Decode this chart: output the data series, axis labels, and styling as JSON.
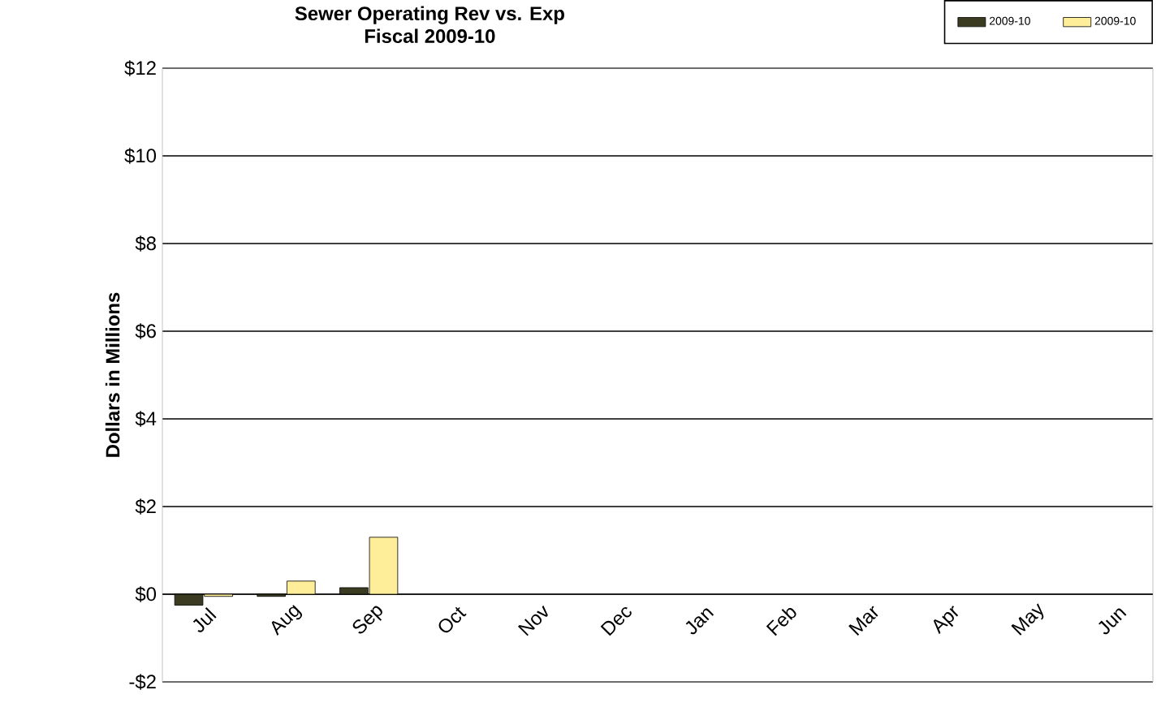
{
  "chart_data": {
    "type": "bar",
    "title": "Sewer Operating Rev vs. Exp",
    "subtitle": "Fiscal 2009-10",
    "ylabel": "Dollars in Millions",
    "categories": [
      "Jul",
      "Aug",
      "Sep",
      "Oct",
      "Nov",
      "Dec",
      "Jan",
      "Feb",
      "Mar",
      "Apr",
      "May",
      "Jun"
    ],
    "series": [
      {
        "name": "2009-10",
        "color": "#3b3b22",
        "values": [
          -0.25,
          -0.05,
          0.15,
          null,
          null,
          null,
          null,
          null,
          null,
          null,
          null,
          null
        ]
      },
      {
        "name": "2009-10",
        "color": "#ffee99",
        "values": [
          -0.05,
          0.3,
          1.3,
          null,
          null,
          null,
          null,
          null,
          null,
          null,
          null,
          null
        ]
      }
    ],
    "ylim": [
      -2,
      12
    ],
    "yticks": [
      {
        "value": -2,
        "label": "-$2"
      },
      {
        "value": 0,
        "label": "$0"
      },
      {
        "value": 2,
        "label": "$2"
      },
      {
        "value": 4,
        "label": "$4"
      },
      {
        "value": 6,
        "label": "$6"
      },
      {
        "value": 8,
        "label": "$8"
      },
      {
        "value": 10,
        "label": "$10"
      },
      {
        "value": 12,
        "label": "$12"
      }
    ],
    "grid": "y",
    "legend": "top right"
  }
}
